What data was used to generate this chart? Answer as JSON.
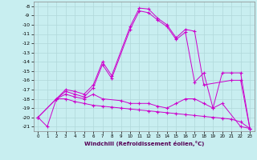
{
  "xlabel": "Windchill (Refroidissement éolien,°C)",
  "bg_color": "#c8eef0",
  "grid_color": "#b0d8da",
  "line_color": "#cc00cc",
  "xlim": [
    -0.5,
    23.5
  ],
  "ylim": [
    -21.5,
    -7.5
  ],
  "xticks": [
    0,
    1,
    2,
    3,
    4,
    5,
    6,
    7,
    8,
    9,
    10,
    11,
    12,
    13,
    14,
    15,
    16,
    17,
    18,
    19,
    20,
    21,
    22,
    23
  ],
  "yticks": [
    -8,
    -9,
    -10,
    -11,
    -12,
    -13,
    -14,
    -15,
    -16,
    -17,
    -18,
    -19,
    -20,
    -21
  ],
  "lines": [
    {
      "x": [
        0,
        1,
        2,
        3,
        4,
        5,
        6,
        7,
        8,
        10,
        11,
        12,
        13,
        14,
        15,
        16,
        17,
        18,
        21,
        22,
        23
      ],
      "y": [
        -20,
        -21,
        -18,
        -17,
        -17.2,
        -17.5,
        -16.5,
        -14,
        -15.5,
        -10.2,
        -8.2,
        -8.3,
        -9.3,
        -10,
        -11.4,
        -10.5,
        -10.7,
        -16.5,
        -16,
        -16,
        -21.2
      ]
    },
    {
      "x": [
        2,
        3,
        4,
        5,
        6,
        7,
        8,
        10,
        11,
        12,
        13,
        14,
        15,
        16,
        17,
        18,
        19,
        20,
        21,
        22,
        23
      ],
      "y": [
        -18,
        -17.2,
        -17.5,
        -17.8,
        -16.8,
        -14.3,
        -15.8,
        -10.5,
        -8.5,
        -8.7,
        -9.5,
        -10.2,
        -11.6,
        -10.8,
        -16.2,
        -15.2,
        -19,
        -15.2,
        -15.2,
        -15.2,
        -21.2
      ]
    },
    {
      "x": [
        0,
        2,
        3,
        4,
        5,
        6,
        7,
        9,
        10,
        11,
        12,
        13,
        14,
        15,
        16,
        17,
        18,
        19,
        20,
        22,
        23
      ],
      "y": [
        -20,
        -18,
        -17.5,
        -17.8,
        -18,
        -17.5,
        -18,
        -18.2,
        -18.5,
        -18.5,
        -18.5,
        -18.8,
        -19,
        -18.5,
        -18,
        -18,
        -18.5,
        -19,
        -18.5,
        -21,
        -21.2
      ]
    },
    {
      "x": [
        0,
        2,
        3,
        4,
        5,
        6,
        7,
        8,
        9,
        10,
        11,
        12,
        13,
        14,
        15,
        16,
        17,
        18,
        19,
        20,
        21,
        22,
        23
      ],
      "y": [
        -20,
        -18,
        -18,
        -18.3,
        -18.5,
        -18.7,
        -18.8,
        -18.9,
        -19,
        -19.1,
        -19.2,
        -19.3,
        -19.4,
        -19.5,
        -19.6,
        -19.7,
        -19.8,
        -19.9,
        -20,
        -20.1,
        -20.2,
        -20.5,
        -21.2
      ]
    }
  ]
}
